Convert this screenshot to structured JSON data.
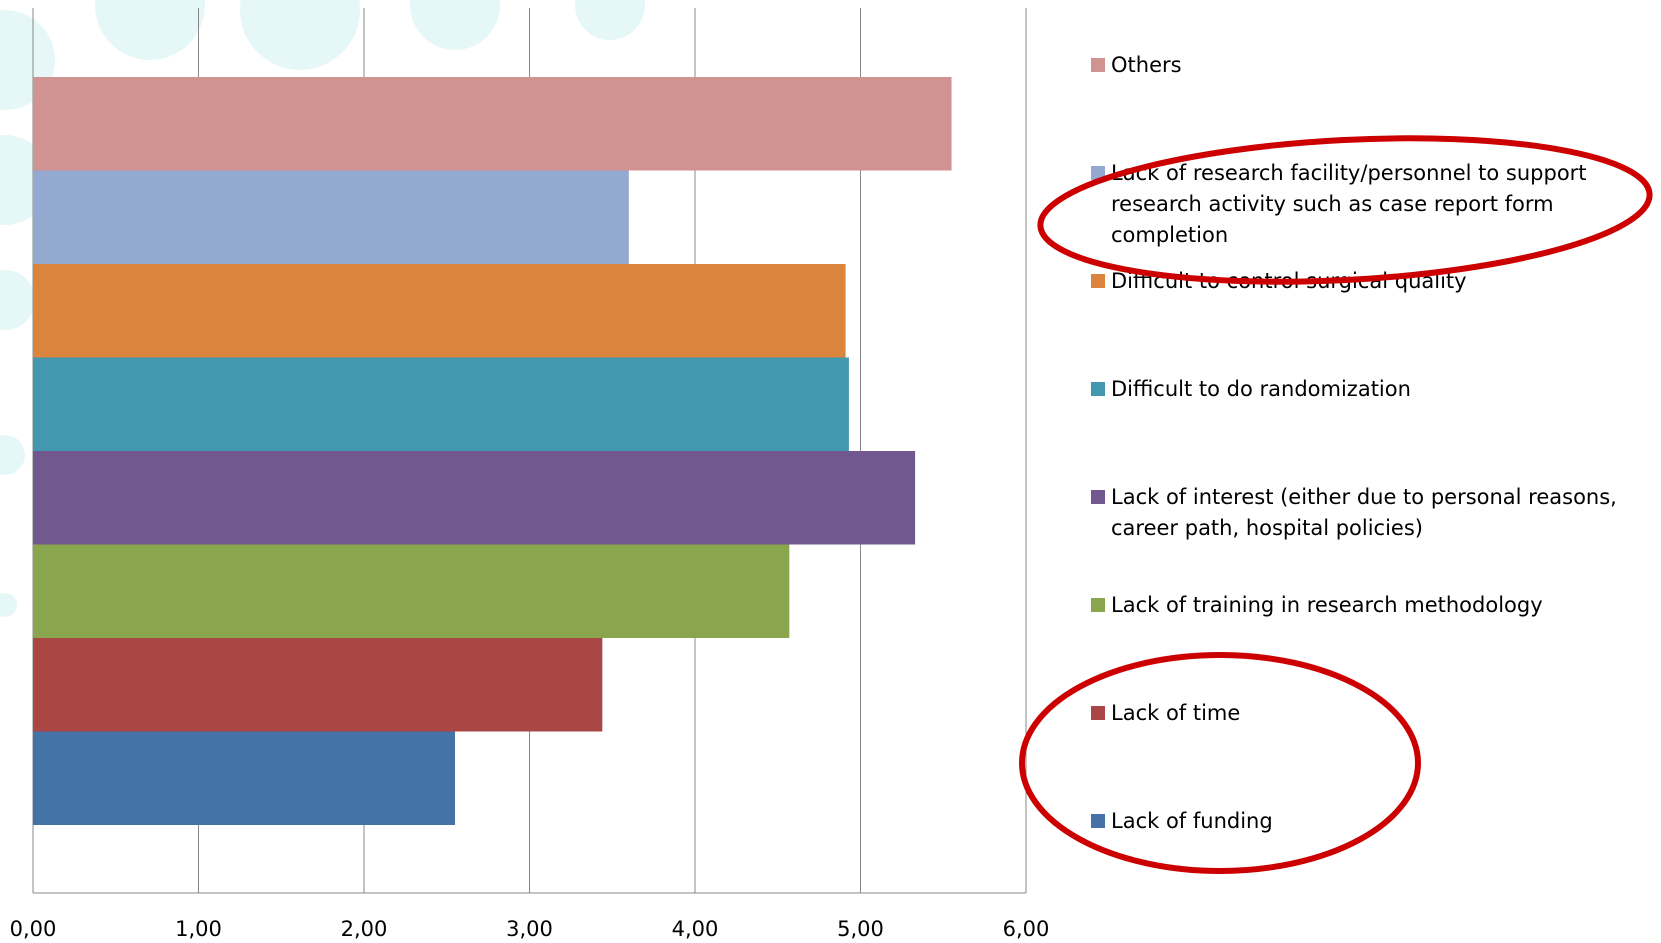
{
  "chart_data": {
    "type": "bar",
    "orientation": "horizontal",
    "series": [
      {
        "name": "Lack of funding",
        "color": "#4572a7",
        "values": [
          2.55
        ]
      },
      {
        "name": "Lack of time",
        "color": "#aa4643",
        "values": [
          3.44
        ]
      },
      {
        "name": "Lack of training in research methodology",
        "color": "#89a54e",
        "values": [
          4.57
        ]
      },
      {
        "name": "Lack of interest (either due to personal reasons, career path, hospital policies)",
        "color": "#71588f",
        "values": [
          5.33
        ]
      },
      {
        "name": "Difficult to do randomization",
        "color": "#4198af",
        "values": [
          4.93
        ]
      },
      {
        "name": "Difficult to control surgical quality",
        "color": "#db843d",
        "values": [
          4.91
        ]
      },
      {
        "name": "Lack of research facility/personnel to support research activity such as case report form completion",
        "color": "#93a9cf",
        "values": [
          3.6
        ]
      },
      {
        "name": "Others",
        "color": "#d19392",
        "values": [
          5.55
        ]
      }
    ],
    "xlim": [
      0,
      6
    ],
    "xticks": [
      {
        "value": 0,
        "label": "0,00"
      },
      {
        "value": 1,
        "label": "1,00"
      },
      {
        "value": 2,
        "label": "2,00"
      },
      {
        "value": 3,
        "label": "3,00"
      },
      {
        "value": 4,
        "label": "4,00"
      },
      {
        "value": 5,
        "label": "5,00"
      },
      {
        "value": 6,
        "label": "6,00"
      }
    ],
    "grid": true,
    "legend": "right"
  }
}
